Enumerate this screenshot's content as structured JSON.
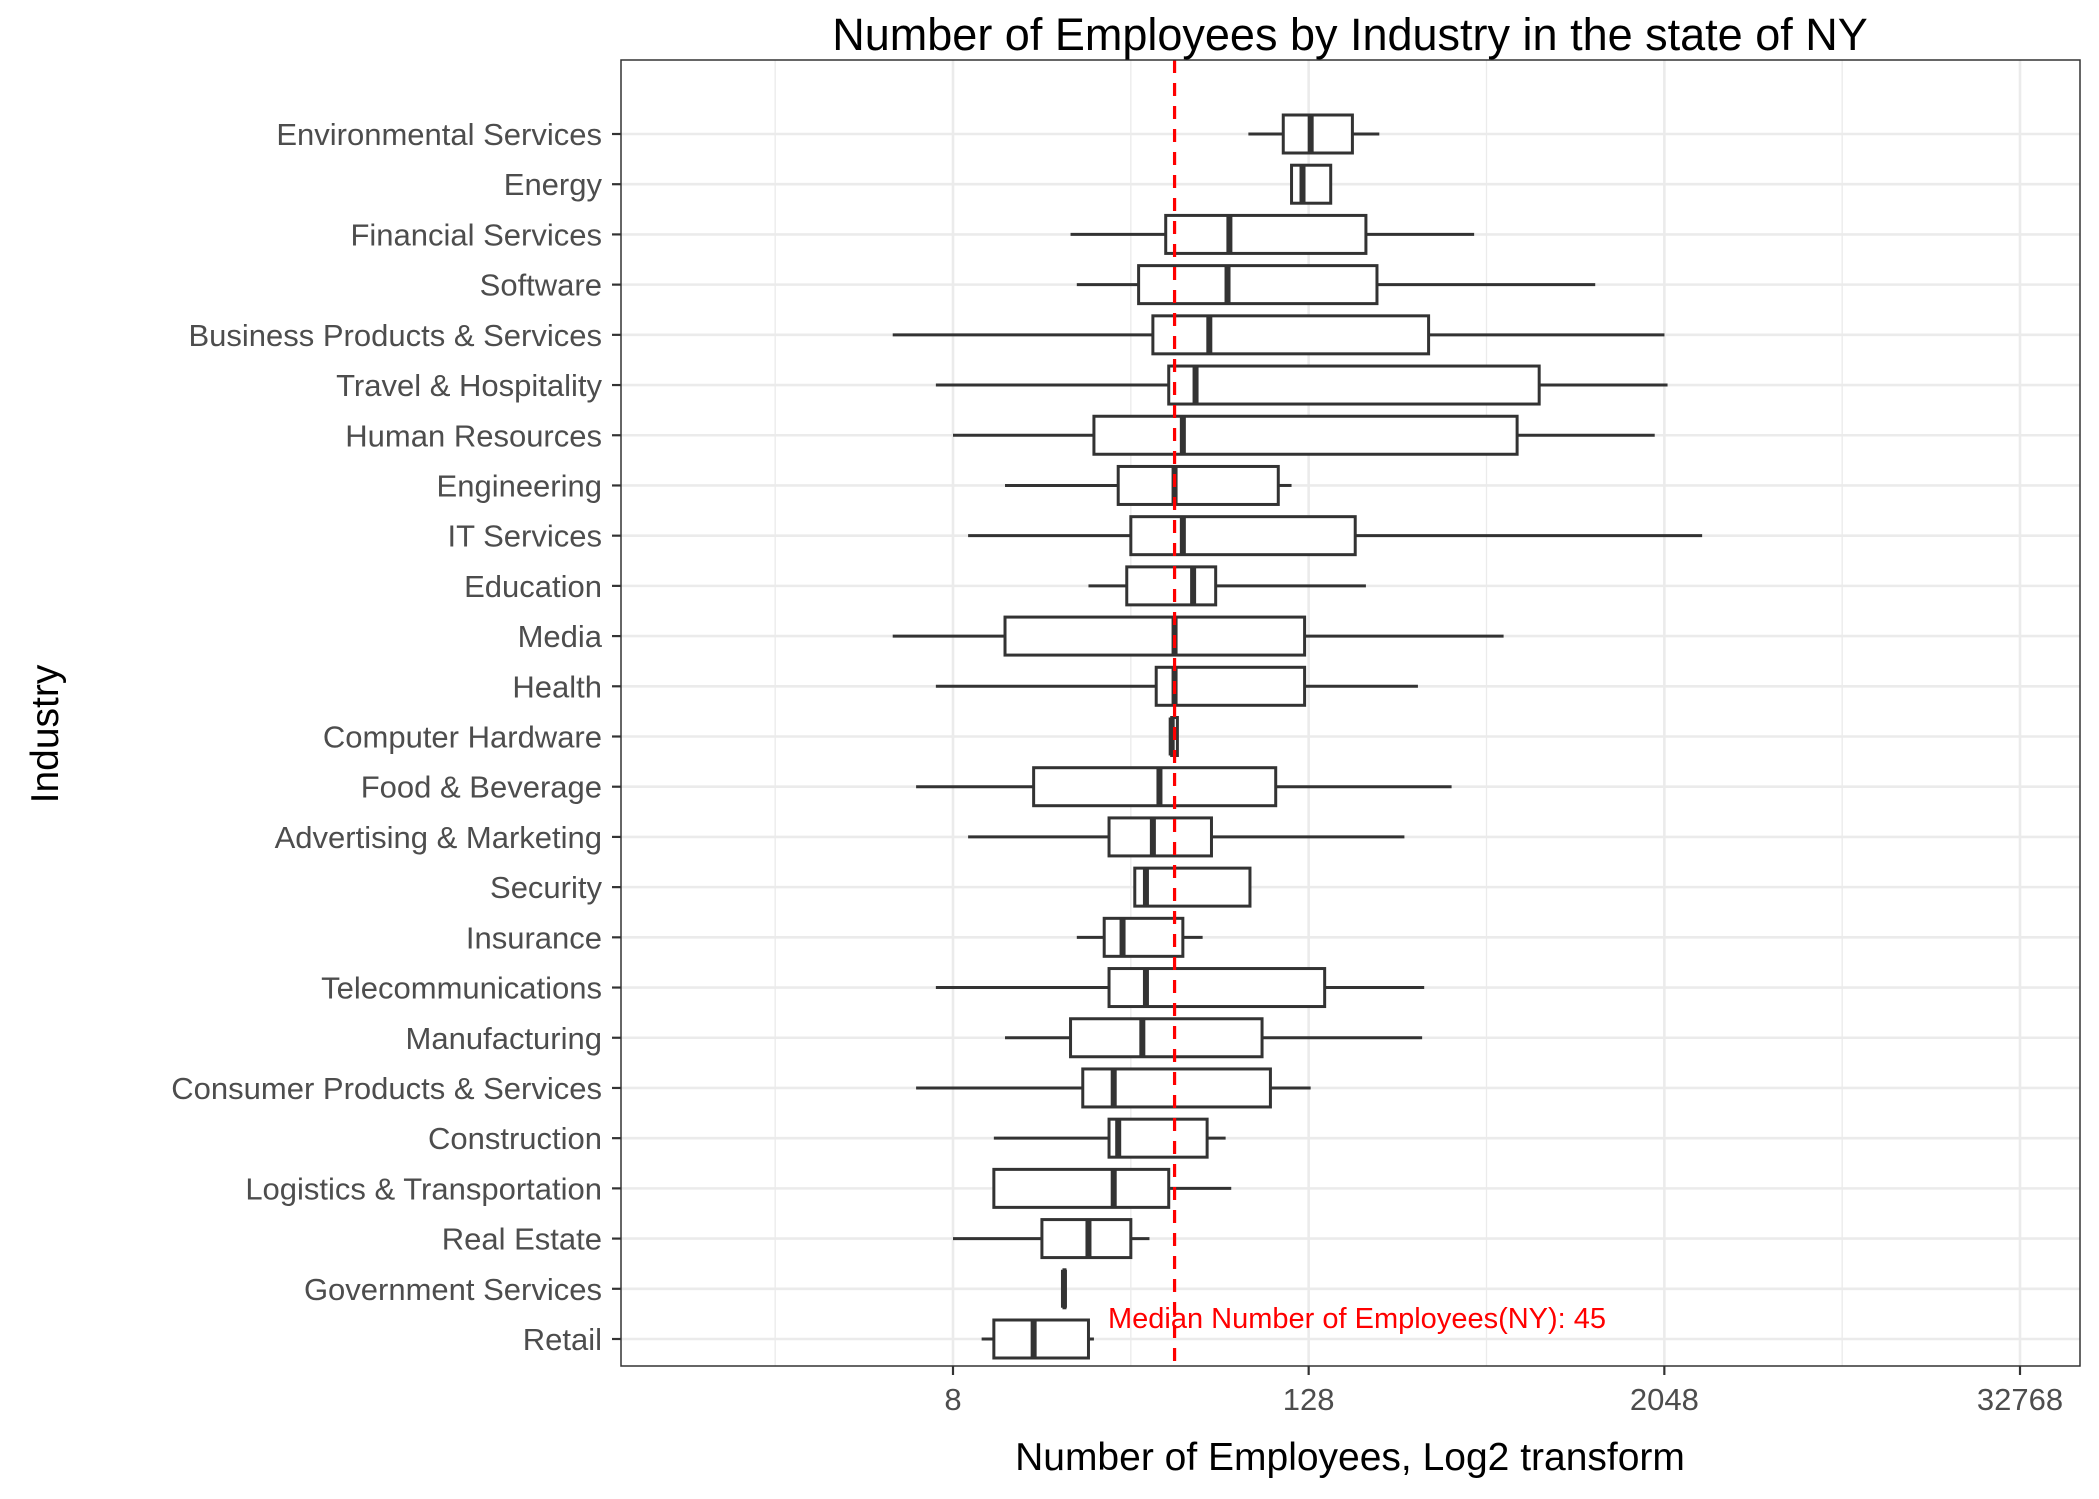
{
  "chart_data": {
    "type": "box",
    "title": "Number of Employees by Industry in the state of NY",
    "xlabel": "Number of Employees, Log2 transform",
    "ylabel": "Industry",
    "x_scale": "log2",
    "x_ticks": [
      8,
      128,
      2048,
      32768
    ],
    "x_tick_labels": [
      "8",
      "128",
      "2048",
      "32768"
    ],
    "xlim": [
      0.7,
      47000
    ],
    "grid": true,
    "colors": {
      "box_stroke": "#333333",
      "median_line": "#ff0000",
      "grid": "#ebebeb",
      "panel_border": "#333333"
    },
    "reference_line": {
      "value": 45,
      "label": "Median Number of Employees(NY):  45",
      "color": "#ff0000",
      "style": "dashed"
    },
    "categories": [
      "Environmental Services",
      "Energy",
      "Financial Services",
      "Software",
      "Business Products & Services",
      "Travel & Hospitality",
      "Human Resources",
      "Engineering",
      "IT Services",
      "Education",
      "Media",
      "Health",
      "Computer Hardware",
      "Food & Beverage",
      "Advertising & Marketing",
      "Security",
      "Insurance",
      "Telecommunications",
      "Manufacturing",
      "Consumer Products & Services",
      "Construction",
      "Logistics & Transportation",
      "Real Estate",
      "Government Services",
      "Retail"
    ],
    "boxes": [
      {
        "min": 80,
        "q1": 105,
        "median": 130,
        "q3": 180,
        "max": 222
      },
      {
        "min": 112,
        "q1": 112,
        "median": 122,
        "q3": 152,
        "max": 152
      },
      {
        "min": 20,
        "q1": 42,
        "median": 69,
        "q3": 200,
        "max": 465
      },
      {
        "min": 21,
        "q1": 34,
        "median": 68,
        "q3": 218,
        "max": 1195
      },
      {
        "min": 5,
        "q1": 38,
        "median": 59,
        "q3": 326,
        "max": 2050
      },
      {
        "min": 7,
        "q1": 43,
        "median": 53,
        "q3": 772,
        "max": 2100
      },
      {
        "min": 8,
        "q1": 24,
        "median": 48,
        "q3": 650,
        "max": 1900
      },
      {
        "min": 12,
        "q1": 29,
        "median": 45,
        "q3": 101,
        "max": 112
      },
      {
        "min": 9,
        "q1": 32,
        "median": 48,
        "q3": 184,
        "max": 2750
      },
      {
        "min": 23,
        "q1": 31,
        "median": 52,
        "q3": 62,
        "max": 200
      },
      {
        "min": 5,
        "q1": 12,
        "median": 45,
        "q3": 124,
        "max": 585
      },
      {
        "min": 7,
        "q1": 39,
        "median": 45,
        "q3": 124,
        "max": 300
      },
      {
        "min": 44,
        "q1": 44,
        "median": 44,
        "q3": 46,
        "max": 46
      },
      {
        "min": 6,
        "q1": 15,
        "median": 40,
        "q3": 99,
        "max": 390
      },
      {
        "min": 9,
        "q1": 27,
        "median": 38,
        "q3": 60,
        "max": 270
      },
      {
        "min": 33,
        "q1": 33,
        "median": 36,
        "q3": 81,
        "max": 81
      },
      {
        "min": 21,
        "q1": 26,
        "median": 30,
        "q3": 48,
        "max": 56
      },
      {
        "min": 7,
        "q1": 27,
        "median": 36,
        "q3": 145,
        "max": 315
      },
      {
        "min": 12,
        "q1": 20,
        "median": 35,
        "q3": 89,
        "max": 310
      },
      {
        "min": 6,
        "q1": 22,
        "median": 28,
        "q3": 95,
        "max": 130
      },
      {
        "min": 11,
        "q1": 27,
        "median": 29,
        "q3": 58,
        "max": 67
      },
      {
        "min": 11,
        "q1": 11,
        "median": 28,
        "q3": 43,
        "max": 70
      },
      {
        "min": 8,
        "q1": 16,
        "median": 23,
        "q3": 32,
        "max": 37
      },
      {
        "min": 19,
        "q1": 19,
        "median": 19,
        "q3": 19,
        "max": 19
      },
      {
        "min": 10,
        "q1": 11,
        "median": 15,
        "q3": 23,
        "max": 24
      }
    ]
  }
}
